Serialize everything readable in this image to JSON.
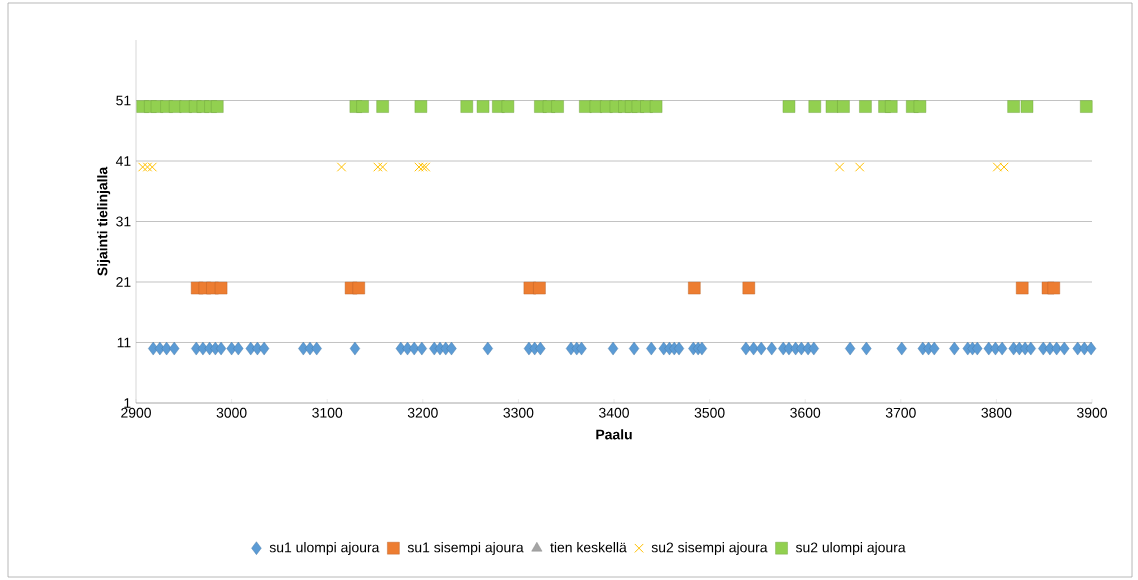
{
  "chart_data": {
    "type": "scatter",
    "xlabel": "Paalu",
    "ylabel": "Sijainti tielinjalla",
    "xlim": [
      2900,
      3900
    ],
    "xticks": [
      2900,
      3000,
      3100,
      3200,
      3300,
      3400,
      3500,
      3600,
      3700,
      3800,
      3900
    ],
    "ylim": [
      1,
      61
    ],
    "yticks": [
      1,
      11,
      21,
      31,
      41,
      51
    ],
    "grid": "y",
    "legend": "bottom",
    "series": [
      {
        "name": "su1 ulompi ajoura",
        "color": "#5b9bd5",
        "marker": "diamond",
        "x": [
          2918,
          2925,
          2932,
          2940,
          2963,
          2970,
          2977,
          2983,
          2989,
          3000,
          3007,
          3020,
          3027,
          3034,
          3075,
          3082,
          3089,
          3129,
          3177,
          3184,
          3191,
          3199,
          3212,
          3218,
          3224,
          3230,
          3268,
          3311,
          3317,
          3323,
          3355,
          3361,
          3366,
          3399,
          3421,
          3439,
          3452,
          3458,
          3463,
          3468,
          3483,
          3488,
          3492,
          3538,
          3546,
          3554,
          3565,
          3577,
          3583,
          3590,
          3596,
          3603,
          3609,
          3647,
          3664,
          3701,
          3723,
          3729,
          3735,
          3756,
          3770,
          3775,
          3780,
          3792,
          3799,
          3806,
          3818,
          3824,
          3830,
          3836,
          3849,
          3856,
          3863,
          3871,
          3885,
          3892,
          3899
        ],
        "values": [
          10,
          10,
          10,
          10,
          10,
          10,
          10,
          10,
          10,
          10,
          10,
          10,
          10,
          10,
          10,
          10,
          10,
          10,
          10,
          10,
          10,
          10,
          10,
          10,
          10,
          10,
          10,
          10,
          10,
          10,
          10,
          10,
          10,
          10,
          10,
          10,
          10,
          10,
          10,
          10,
          10,
          10,
          10,
          10,
          10,
          10,
          10,
          10,
          10,
          10,
          10,
          10,
          10,
          10,
          10,
          10,
          10,
          10,
          10,
          10,
          10,
          10,
          10,
          10,
          10,
          10,
          10,
          10,
          10,
          10,
          10,
          10,
          10,
          10,
          10,
          10,
          10
        ]
      },
      {
        "name": "su1 sisempi ajoura",
        "color": "#ed7d31",
        "marker": "square",
        "x": [
          2964,
          2972,
          2980,
          2989,
          3125,
          3133,
          3312,
          3322,
          3484,
          3541,
          3827,
          3854,
          3860
        ],
        "values": [
          20,
          20,
          20,
          20,
          20,
          20,
          20,
          20,
          20,
          20,
          20,
          20,
          20
        ]
      },
      {
        "name": "tien keskellä",
        "color": "#a5a5a5",
        "marker": "triangle"
      },
      {
        "name": "su2 sisempi ajoura",
        "color": "#ffc000",
        "marker": "cross",
        "x": [
          2907,
          2912,
          2917,
          3115,
          3153,
          3158,
          3196,
          3200,
          3203,
          3636,
          3657,
          3801,
          3808
        ],
        "values": [
          40,
          40,
          40,
          40,
          40,
          40,
          40,
          40,
          40,
          40,
          40,
          40,
          40
        ]
      },
      {
        "name": "su2 ulompi ajoura",
        "color": "#92d050",
        "marker": "square",
        "x": [
          2907,
          2915,
          2922,
          2932,
          2941,
          2952,
          2962,
          2970,
          2978,
          2985,
          3130,
          3137,
          3158,
          3198,
          3246,
          3263,
          3279,
          3289,
          3323,
          3332,
          3341,
          3370,
          3381,
          3392,
          3402,
          3411,
          3418,
          3425,
          3434,
          3444,
          3583,
          3610,
          3628,
          3640,
          3663,
          3683,
          3690,
          3712,
          3720,
          3818,
          3832,
          3894
        ],
        "values": [
          50,
          50,
          50,
          50,
          50,
          50,
          50,
          50,
          50,
          50,
          50,
          50,
          50,
          50,
          50,
          50,
          50,
          50,
          50,
          50,
          50,
          50,
          50,
          50,
          50,
          50,
          50,
          50,
          50,
          50,
          50,
          50,
          50,
          50,
          50,
          50,
          50,
          50,
          50,
          50,
          50,
          50
        ]
      }
    ]
  }
}
